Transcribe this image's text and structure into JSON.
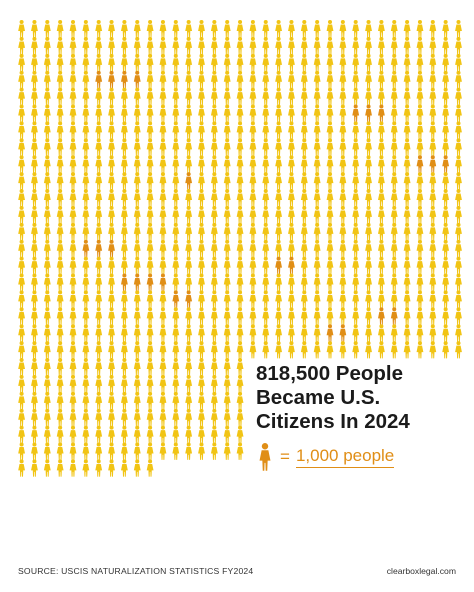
{
  "chart_data": {
    "type": "pictogram",
    "title_lines": [
      "818,500 People",
      "Became U.S.",
      "Citizens In 2024"
    ],
    "legend": {
      "equals": "=",
      "label": "1,000 people",
      "icon": "person-icon"
    },
    "icon_unit": 1000,
    "total_value": 818500,
    "icons_shown": 819,
    "colors": {
      "primary_icon": "#f1c414",
      "highlight_icon": "#e08e16",
      "title_text": "#1b1b1b",
      "legend_text": "#e08e16"
    }
  },
  "footer": {
    "source": "SOURCE: USCIS NATURALIZATION STATISTICS FY2024",
    "url": "clearboxlegal.com"
  }
}
